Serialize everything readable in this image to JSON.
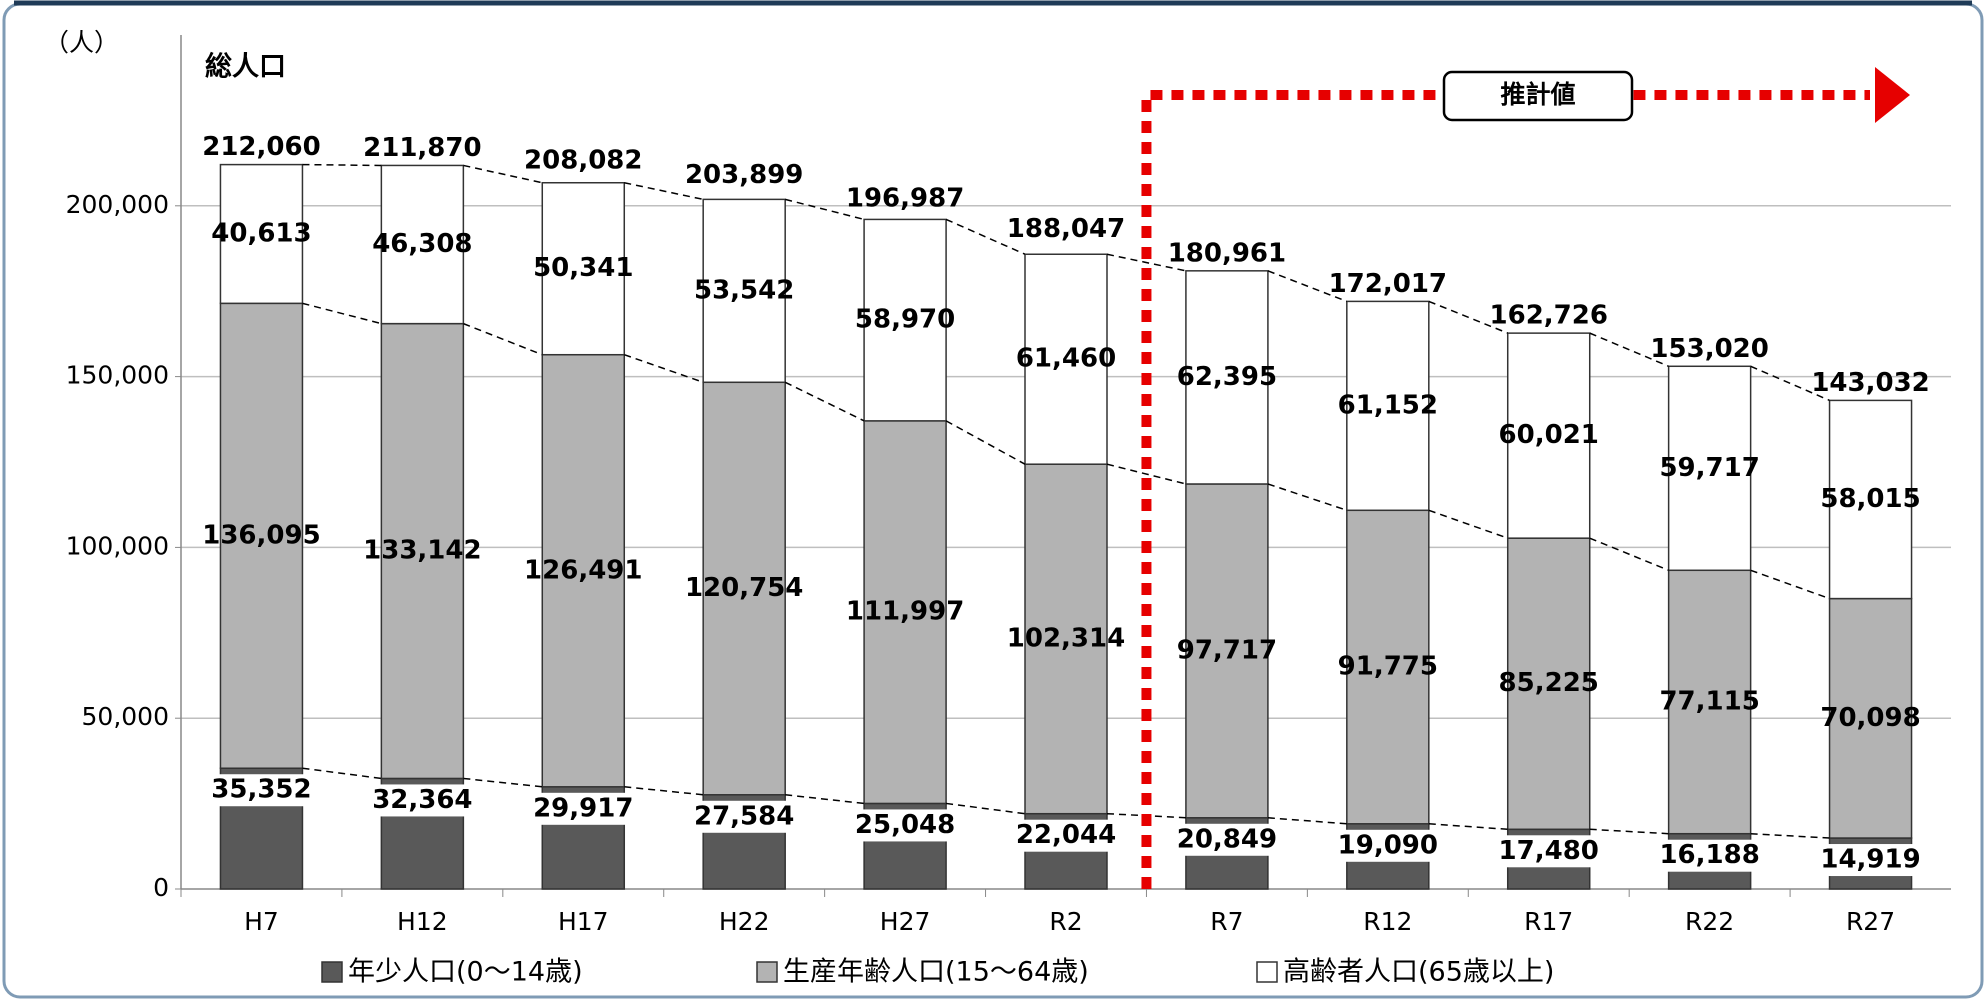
{
  "chart_data": {
    "type": "stacked_bar",
    "title": "総人口",
    "y_label": "（人）",
    "annotation": "推計値",
    "categories": [
      "H7",
      "H12",
      "H17",
      "H22",
      "H27",
      "R2",
      "R7",
      "R12",
      "R17",
      "R22",
      "R27"
    ],
    "series": [
      {
        "name": "年少人口(0～14歳)",
        "color": "#595959",
        "values": [
          35352,
          32364,
          29917,
          27584,
          25048,
          22044,
          20849,
          19090,
          17480,
          16188,
          14919
        ],
        "value_labels": [
          "35,352",
          "32,364",
          "29,917",
          "27,584",
          "25,048",
          "22,044",
          "20,849",
          "19,090",
          "17,480",
          "16,188",
          "14,919"
        ]
      },
      {
        "name": "生産年齢人口(15～64歳)",
        "color": "#b3b3b3",
        "values": [
          136095,
          133142,
          126491,
          120754,
          111997,
          102314,
          97717,
          91775,
          85225,
          77115,
          70098
        ],
        "value_labels": [
          "136,095",
          "133,142",
          "126,491",
          "120,754",
          "111,997",
          "102,314",
          "97,717",
          "91,775",
          "85,225",
          "77,115",
          "70,098"
        ]
      },
      {
        "name": "高齢者人口(65歳以上)",
        "color": "#ffffff",
        "values": [
          40613,
          46308,
          50341,
          53542,
          58970,
          61460,
          62395,
          61152,
          60021,
          59717,
          58015
        ],
        "value_labels": [
          "40,613",
          "46,308",
          "50,341",
          "53,542",
          "58,970",
          "61,460",
          "62,395",
          "61,152",
          "60,021",
          "59,717",
          "58,015"
        ]
      }
    ],
    "totals": {
      "values": [
        212060,
        211870,
        208082,
        203899,
        196987,
        188047,
        180961,
        172017,
        162726,
        153020,
        143032
      ],
      "value_labels": [
        "212,060",
        "211,870",
        "208,082",
        "203,899",
        "196,987",
        "188,047",
        "180,961",
        "172,017",
        "162,726",
        "153,020",
        "143,032"
      ]
    },
    "ylim": [
      0,
      250000
    ],
    "yticks": [
      0,
      {
        "value": 50000,
        "label": "50,000"
      },
      {
        "value": 100000,
        "label": "100,000"
      },
      {
        "value": 150000,
        "label": "150,000"
      },
      {
        "value": 200000,
        "label": "200,000"
      }
    ],
    "grid": true
  }
}
